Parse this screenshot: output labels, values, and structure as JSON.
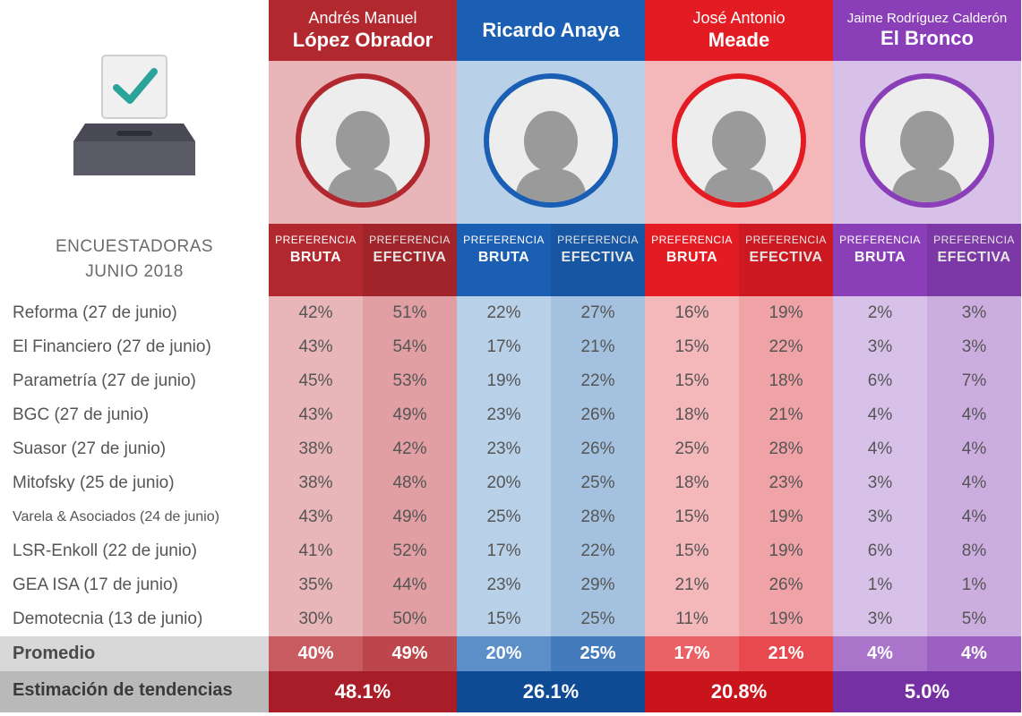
{
  "colors": {
    "bg": "#ffffff",
    "text_body": "#555555",
    "text_header_left": "#6b6b6b",
    "promedio_bg": "#d8d8d8",
    "tendencias_bg": "#b9b9b9"
  },
  "left_header": {
    "line1": "ENCUESTADORAS",
    "line2": "JUNIO 2018"
  },
  "pref_labels": {
    "line1": "PREFERENCIA",
    "bruta": "BRUTA",
    "efectiva": "EFECTIVA"
  },
  "candidates": [
    {
      "name_line1": "Andrés Manuel",
      "name_line2": "López Obrador",
      "color_dark": "#b2282f",
      "color_light_a": "#e8b6b9",
      "color_light_b": "#e19fa4",
      "pref_dark": "#b2282f",
      "prom_a": "#c85b60",
      "prom_b": "#bd454c",
      "tend": "#a81d27",
      "portrait_ring": "#b2282f"
    },
    {
      "name_line1": "",
      "name_line2": "Ricardo Anaya",
      "color_dark": "#1a5fb4",
      "color_light_a": "#b9d1e8",
      "color_light_b": "#a4c2e0",
      "pref_dark": "#1a5fb4",
      "prom_a": "#5c8fc7",
      "prom_b": "#447bbc",
      "tend": "#0f4a94",
      "portrait_ring": "#1a5fb4"
    },
    {
      "name_line1": "José Antonio",
      "name_line2": "Meade",
      "color_dark": "#e31b23",
      "color_light_a": "#f4b8bb",
      "color_light_b": "#f0a3a7",
      "pref_dark": "#e31b23",
      "prom_a": "#ea6166",
      "prom_b": "#e7494f",
      "tend": "#c9141b",
      "portrait_ring": "#e31b23"
    },
    {
      "name_line1": "Jaime Rodríguez Calderón",
      "name_line2": "El Bronco",
      "color_dark": "#8a3fb8",
      "color_light_a": "#d8c1e8",
      "color_light_b": "#ccade0",
      "pref_dark": "#8a3fb8",
      "prom_a": "#aa74cb",
      "prom_b": "#9c5fc2",
      "tend": "#7530a3",
      "portrait_ring": "#8a3fb8"
    }
  ],
  "rows": [
    {
      "label": "Reforma (27 de junio)",
      "vals": [
        [
          "42%",
          "51%"
        ],
        [
          "22%",
          "27%"
        ],
        [
          "16%",
          "19%"
        ],
        [
          "2%",
          "3%"
        ]
      ]
    },
    {
      "label": "El Financiero (27 de junio)",
      "vals": [
        [
          "43%",
          "54%"
        ],
        [
          "17%",
          "21%"
        ],
        [
          "15%",
          "22%"
        ],
        [
          "3%",
          "3%"
        ]
      ]
    },
    {
      "label": "Parametría (27 de junio)",
      "vals": [
        [
          "45%",
          "53%"
        ],
        [
          "19%",
          "22%"
        ],
        [
          "15%",
          "18%"
        ],
        [
          "6%",
          "7%"
        ]
      ]
    },
    {
      "label": "BGC (27 de junio)",
      "vals": [
        [
          "43%",
          "49%"
        ],
        [
          "23%",
          "26%"
        ],
        [
          "18%",
          "21%"
        ],
        [
          "4%",
          "4%"
        ]
      ]
    },
    {
      "label": "Suasor (27 de junio)",
      "vals": [
        [
          "38%",
          "42%"
        ],
        [
          "23%",
          "26%"
        ],
        [
          "25%",
          "28%"
        ],
        [
          "4%",
          "4%"
        ]
      ]
    },
    {
      "label": "Mitofsky (25 de junio)",
      "vals": [
        [
          "38%",
          "48%"
        ],
        [
          "20%",
          "25%"
        ],
        [
          "18%",
          "23%"
        ],
        [
          "3%",
          "4%"
        ]
      ]
    },
    {
      "label": "Varela & Asociados (24 de junio)",
      "small": true,
      "vals": [
        [
          "43%",
          "49%"
        ],
        [
          "25%",
          "28%"
        ],
        [
          "15%",
          "19%"
        ],
        [
          "3%",
          "4%"
        ]
      ]
    },
    {
      "label": "LSR-Enkoll (22 de junio)",
      "vals": [
        [
          "41%",
          "52%"
        ],
        [
          "17%",
          "22%"
        ],
        [
          "15%",
          "19%"
        ],
        [
          "6%",
          "8%"
        ]
      ]
    },
    {
      "label": "GEA ISA (17 de junio)",
      "vals": [
        [
          "35%",
          "44%"
        ],
        [
          "23%",
          "29%"
        ],
        [
          "21%",
          "26%"
        ],
        [
          "1%",
          "1%"
        ]
      ]
    },
    {
      "label": "Demotecnia (13 de junio)",
      "vals": [
        [
          "30%",
          "50%"
        ],
        [
          "15%",
          "25%"
        ],
        [
          "11%",
          "19%"
        ],
        [
          "3%",
          "5%"
        ]
      ]
    }
  ],
  "promedio": {
    "label": "Promedio",
    "vals": [
      [
        "40%",
        "49%"
      ],
      [
        "20%",
        "25%"
      ],
      [
        "17%",
        "21%"
      ],
      [
        "4%",
        "4%"
      ]
    ]
  },
  "tendencias": {
    "label": "Estimación de tendencias",
    "vals": [
      "48.1%",
      "26.1%",
      "20.8%",
      "5.0%"
    ]
  }
}
